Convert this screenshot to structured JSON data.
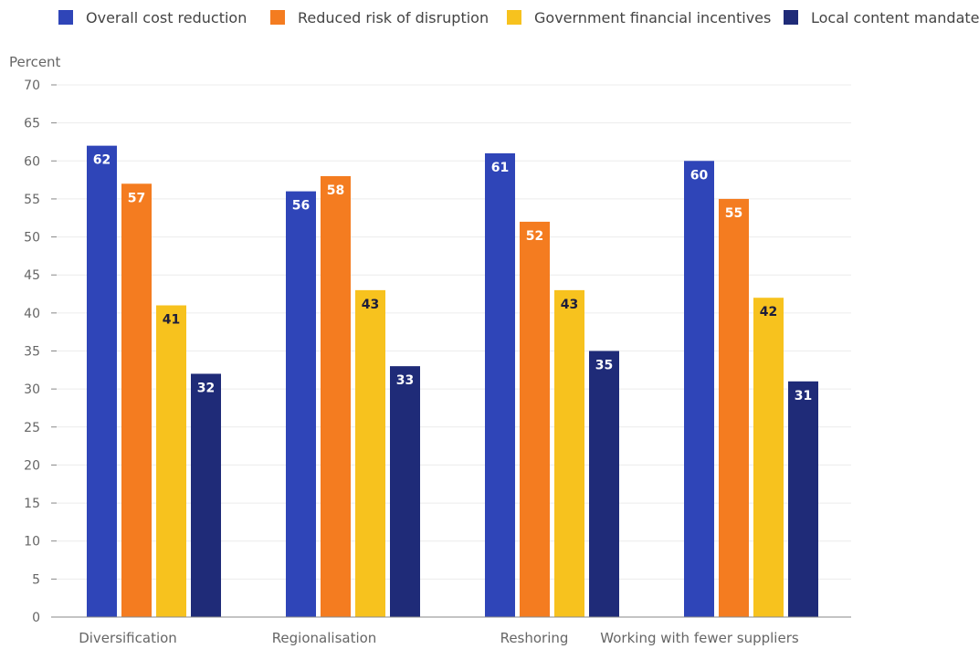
{
  "chart_data": {
    "type": "bar",
    "ylabel": "Percent",
    "ylim": [
      0,
      70
    ],
    "yticks": [
      0,
      5,
      10,
      15,
      20,
      25,
      30,
      35,
      40,
      45,
      50,
      55,
      60,
      65,
      70
    ],
    "grid": true,
    "legend_position": "top",
    "categories": [
      "Diversification",
      "Regionalisation",
      "Reshoring",
      "Working with fewer suppliers"
    ],
    "series": [
      {
        "name": "Overall cost reduction",
        "color": "#2f45b8",
        "label_color": "#ffffff",
        "values": [
          62,
          56,
          61,
          60
        ]
      },
      {
        "name": "Reduced risk of disruption",
        "color": "#f47c20",
        "label_color": "#ffffff",
        "values": [
          57,
          58,
          52,
          55
        ]
      },
      {
        "name": "Government financial incentives",
        "color": "#f7c21e",
        "label_color": "#1d1d3a",
        "values": [
          41,
          43,
          43,
          42
        ]
      },
      {
        "name": "Local content mandates",
        "color": "#1f2b78",
        "label_color": "#ffffff",
        "values": [
          32,
          33,
          35,
          31
        ]
      }
    ]
  }
}
